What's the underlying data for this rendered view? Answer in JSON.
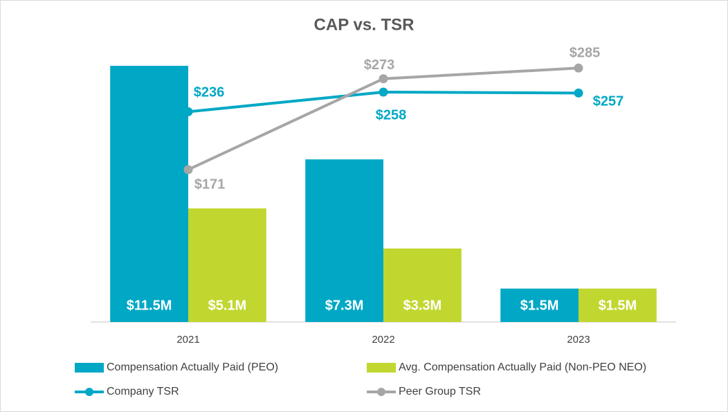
{
  "chart_data": {
    "type": "combo",
    "title": "CAP vs. TSR",
    "categories": [
      "2021",
      "2022",
      "2023"
    ],
    "ylim": [
      0,
      12000000
    ],
    "y2lim": [
      0,
      300
    ],
    "series": [
      {
        "name": "Compensation Actually Paid (PEO)",
        "type": "bar",
        "color": "#00a8c5",
        "values": [
          11500000,
          7300000,
          1500000
        ],
        "value_labels": [
          "$11.5M",
          "$7.3M",
          "$1.5M"
        ]
      },
      {
        "name": "Avg. Compensation Actually Paid (Non-PEO NEO)",
        "type": "bar",
        "color": "#c1d72f",
        "values": [
          5100000,
          3300000,
          1500000
        ],
        "value_labels": [
          "$5.1M",
          "$3.3M",
          "$1.5M"
        ]
      },
      {
        "name": "Company TSR",
        "type": "line",
        "axis": "y2",
        "color": "#00a8c5",
        "values": [
          236,
          258,
          257
        ],
        "value_labels": [
          "$236",
          "$258",
          "$257"
        ]
      },
      {
        "name": "Peer Group TSR",
        "type": "line",
        "axis": "y2",
        "color": "#a6a6a6",
        "values": [
          171,
          273,
          285
        ],
        "value_labels": [
          "$171",
          "$273",
          "$285"
        ]
      }
    ]
  }
}
